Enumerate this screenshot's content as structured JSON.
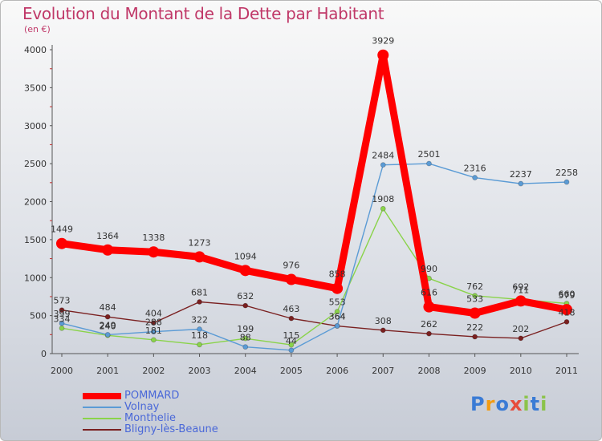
{
  "title": "Evolution du Montant de la Dette par Habitant",
  "subtitle": "(en €)",
  "brand": {
    "letters": [
      "P",
      "r",
      "o",
      "x",
      "i",
      "t",
      "i"
    ],
    "colors": [
      "#3a7bd5",
      "#f39c12",
      "#3a7bd5",
      "#e74c3c",
      "#8bc34a",
      "#3a7bd5",
      "#8bc34a"
    ]
  },
  "chart_data": {
    "type": "line",
    "categories": [
      "2000",
      "2001",
      "2002",
      "2003",
      "2004",
      "2005",
      "2006",
      "2007",
      "2008",
      "2009",
      "2010",
      "2011"
    ],
    "ylim": [
      0,
      4000
    ],
    "yticks": [
      "0",
      "500",
      "1000",
      "1500",
      "2000",
      "2500",
      "3000",
      "3500",
      "4000"
    ],
    "ytick_values": [
      0,
      500,
      1000,
      1500,
      2000,
      2500,
      3000,
      3500,
      4000
    ],
    "grid": false,
    "legend_position": "bottom-left",
    "series": [
      {
        "name": "POMMARD",
        "color": "#ff0000",
        "values": [
          1449,
          1364,
          1338,
          1273,
          1094,
          976,
          858,
          3929,
          616,
          533,
          692,
          579
        ],
        "labels": [
          "1449",
          "1364",
          "1338",
          "1273",
          "1094",
          "976",
          "858",
          "3929",
          "616",
          "533",
          "692",
          "579"
        ]
      },
      {
        "name": "Volnay",
        "color": "#5b9bd5",
        "values": [
          399,
          249,
          288,
          322,
          88,
          44,
          364,
          2484,
          2501,
          2316,
          2237,
          2258
        ],
        "labels": [
          "399",
          "249",
          "288",
          "322",
          "88",
          "44",
          "364",
          "2484",
          "2501",
          "2316",
          "2237",
          "2258"
        ]
      },
      {
        "name": "Monthelie",
        "color": "#8ad34a",
        "values": [
          334,
          240,
          181,
          118,
          199,
          115,
          553,
          1908,
          990,
          762,
          711,
          660
        ],
        "labels": [
          "334",
          "240",
          "181",
          "118",
          "199",
          "115",
          "553",
          "1908",
          "990",
          "762",
          "711",
          "660"
        ]
      },
      {
        "name": "Bligny-lès-Beaune",
        "color": "#7a2020",
        "values": [
          573,
          484,
          404,
          681,
          632,
          463,
          364,
          308,
          262,
          222,
          202,
          418
        ],
        "labels": [
          "573",
          "484",
          "404",
          "681",
          "632",
          "463",
          "364",
          "308",
          "262",
          "222",
          "202",
          "418"
        ]
      }
    ]
  }
}
